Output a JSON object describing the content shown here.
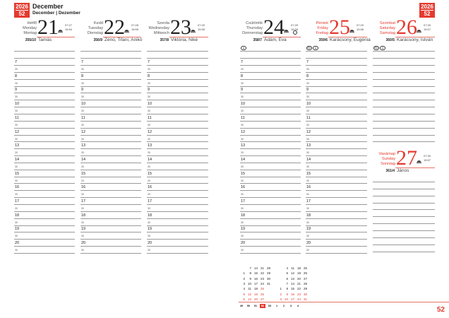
{
  "header": {
    "year": "2026",
    "week": "52",
    "month": "December",
    "month_translations": "December | Dezember"
  },
  "colors": {
    "accent": "#e53a2f",
    "line": "#999999"
  },
  "hours": [
    "7",
    "8",
    "9",
    "10",
    "11",
    "12",
    "13",
    "14",
    "15",
    "16",
    "17",
    "18",
    "19",
    "20"
  ],
  "half_label": "30",
  "days": [
    {
      "num": "21",
      "names": [
        "Hétfő",
        "Monday",
        "Montag"
      ],
      "sunrise": "07:27",
      "sunset": "15:54",
      "dayno": "355/10",
      "nameday": "Tamás",
      "red": false,
      "symbols": []
    },
    {
      "num": "22",
      "names": [
        "Kedd",
        "Tuesday",
        "Dienstag"
      ],
      "sunrise": "07:28",
      "sunset": "15:55",
      "dayno": "356/9",
      "nameday": "Zénó, Tifani, Anikó",
      "red": false,
      "symbols": []
    },
    {
      "num": "23",
      "names": [
        "Szerda",
        "Wednesday",
        "Mittwoch"
      ],
      "sunrise": "07:29",
      "sunset": "15:55",
      "dayno": "357/8",
      "nameday": "Viktória, Niké",
      "red": false,
      "symbols": []
    },
    {
      "num": "24",
      "names": [
        "Csütörtök",
        "Thursday",
        "Donnerstag"
      ],
      "sunrise": "07:29",
      "sunset": "15:56",
      "dayno": "358/7",
      "nameday": "Ádám, Éva",
      "red": false,
      "moon": "full-moon-icon",
      "symbols": [
        "●"
      ]
    },
    {
      "num": "25",
      "names": [
        "Péntek",
        "Friday",
        "Freitag"
      ],
      "sunrise": "07:29",
      "sunset": "15:56",
      "dayno": "359/6",
      "nameday": "Karácsony, Eugénia",
      "red": true,
      "symbols": [
        "EU",
        "●"
      ]
    },
    {
      "num": "26",
      "names": [
        "Szombat",
        "Saturday",
        "Samstag"
      ],
      "sunrise": "07:30",
      "sunset": "15:57",
      "dayno": "360/5",
      "nameday": "Karácsony, István",
      "red": true,
      "symbols": [
        "EU",
        "●"
      ]
    },
    {
      "num": "27",
      "names": [
        "Vasárnap",
        "Sunday",
        "Sonntag"
      ],
      "sunrise": "07:30",
      "sunset": "15:57",
      "dayno": "361/4",
      "nameday": "János",
      "red": true,
      "symbols": []
    }
  ],
  "mini_calendar": {
    "december": [
      [
        "",
        "7",
        "14",
        "21",
        "28"
      ],
      [
        "1",
        "8",
        "15",
        "22",
        "29"
      ],
      [
        "2",
        "9",
        "16",
        "23",
        "30"
      ],
      [
        "3",
        "10",
        "17",
        "24",
        "31"
      ],
      [
        "4",
        "11",
        "18",
        "25",
        ""
      ],
      [
        "5",
        "12",
        "19",
        "26",
        ""
      ],
      [
        "6",
        "13",
        "20",
        "27",
        ""
      ]
    ],
    "january": [
      [
        "",
        "4",
        "11",
        "18",
        "25"
      ],
      [
        "",
        "5",
        "12",
        "19",
        "26"
      ],
      [
        "",
        "6",
        "13",
        "20",
        "27"
      ],
      [
        "",
        "7",
        "14",
        "21",
        "28"
      ],
      [
        "1",
        "8",
        "15",
        "22",
        "29"
      ],
      [
        "2",
        "9",
        "16",
        "23",
        "30"
      ],
      [
        "3",
        "10",
        "17",
        "24",
        "31"
      ]
    ],
    "weeks": [
      "49",
      "50",
      "51",
      "52",
      "53",
      "1",
      "2",
      "3",
      "4"
    ],
    "current_week": "52"
  },
  "page_number": "52"
}
